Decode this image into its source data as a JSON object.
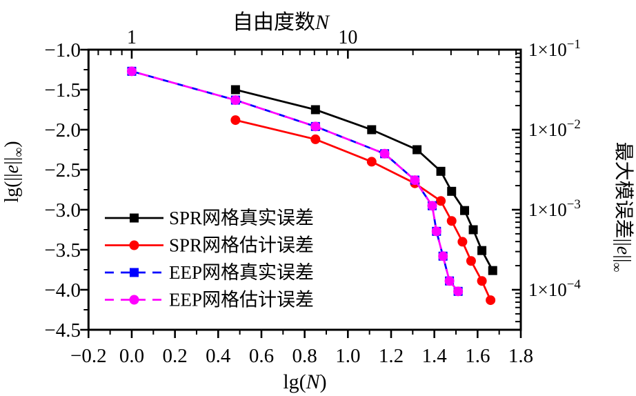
{
  "chart_data": {
    "type": "line",
    "background": "#ffffff",
    "top_axis": {
      "title_parts": [
        {
          "t": "自由度数"
        },
        {
          "t": "N",
          "italic": true
        }
      ],
      "scale": "log",
      "tick_labels": [
        "1",
        "10"
      ],
      "tick_positions": [
        0,
        1
      ]
    },
    "x_axis": {
      "label_parts": [
        {
          "t": "lg("
        },
        {
          "t": "N",
          "italic": true
        },
        {
          "t": ")"
        }
      ],
      "min": -0.2,
      "max": 1.8,
      "major_ticks": [
        -0.2,
        0.0,
        0.2,
        0.4,
        0.6,
        0.8,
        1.0,
        1.2,
        1.4,
        1.6,
        1.8
      ],
      "tick_labels": [
        "−0.2",
        "0.0",
        "0.2",
        "0.4",
        "0.6",
        "0.8",
        "1.0",
        "1.2",
        "1.4",
        "1.6",
        "1.8"
      ],
      "minor_step": 0.1
    },
    "y_axis": {
      "label_parts": [
        {
          "t": "lg(||"
        },
        {
          "t": "e",
          "italic": true
        },
        {
          "t": "||"
        },
        {
          "t": "∞",
          "sub": true
        },
        {
          "t": ")"
        }
      ],
      "min": -4.5,
      "max": -1.0,
      "major_ticks": [
        -1.0,
        -1.5,
        -2.0,
        -2.5,
        -3.0,
        -3.5,
        -4.0,
        -4.5
      ],
      "tick_labels": [
        "−1.0",
        "−1.5",
        "−2.0",
        "−2.5",
        "−3.0",
        "−3.5",
        "−4.0",
        "−4.5"
      ],
      "minor_step": 0.25
    },
    "right_axis": {
      "label_parts": [
        {
          "t": "最大模误差||"
        },
        {
          "t": "e",
          "italic": true
        },
        {
          "t": "||"
        },
        {
          "t": "∞",
          "sub": true
        }
      ],
      "scale": "log",
      "tick_positions": [
        -1,
        -2,
        -3,
        -4
      ],
      "tick_labels": [
        {
          "mantissa": "1×10",
          "exp": "−1"
        },
        {
          "mantissa": "1×10",
          "exp": "−2"
        },
        {
          "mantissa": "1×10",
          "exp": "−3"
        },
        {
          "mantissa": "1×10",
          "exp": "−4"
        }
      ]
    },
    "series": [
      {
        "id": "spr-true",
        "name": "SPR网格真实误差",
        "color": "#000000",
        "marker": "square",
        "line": "solid",
        "x": [
          0.48,
          0.85,
          1.11,
          1.32,
          1.43,
          1.48,
          1.54,
          1.58,
          1.62,
          1.67
        ],
        "y": [
          -1.5,
          -1.75,
          -2.0,
          -2.25,
          -2.52,
          -2.77,
          -3.01,
          -3.25,
          -3.51,
          -3.76
        ]
      },
      {
        "id": "spr-est",
        "name": "SPR网格估计误差",
        "color": "#ff0000",
        "marker": "circle",
        "line": "solid",
        "x": [
          0.48,
          0.85,
          1.11,
          1.31,
          1.43,
          1.48,
          1.53,
          1.57,
          1.62,
          1.66
        ],
        "y": [
          -1.88,
          -2.12,
          -2.4,
          -2.67,
          -2.89,
          -3.14,
          -3.4,
          -3.64,
          -3.89,
          -4.13
        ]
      },
      {
        "id": "eep-true",
        "name": "EEP网格真实误差",
        "color": "#0000ff",
        "marker": "square",
        "line": "dashed",
        "x": [
          0.0,
          0.48,
          0.85,
          1.17,
          1.31,
          1.39,
          1.41,
          1.44,
          1.47,
          1.51
        ],
        "y": [
          -1.27,
          -1.63,
          -1.96,
          -2.3,
          -2.63,
          -2.95,
          -3.27,
          -3.58,
          -3.89,
          -4.02
        ]
      },
      {
        "id": "eep-est",
        "name": "EEP网格估计误差",
        "color": "#ff00ff",
        "marker": "circle",
        "line": "dashed",
        "x": [
          0.0,
          0.48,
          0.85,
          1.17,
          1.31,
          1.39,
          1.41,
          1.44,
          1.47,
          1.51
        ],
        "y": [
          -1.27,
          -1.63,
          -1.96,
          -2.3,
          -2.63,
          -2.95,
          -3.27,
          -3.58,
          -3.89,
          -4.02
        ]
      }
    ],
    "legend": {
      "items": [
        "SPR网格真实误差",
        "SPR网格估计误差",
        "EEP网格真实误差",
        "EEP网格估计误差"
      ],
      "position": "inside-left-middle"
    }
  }
}
